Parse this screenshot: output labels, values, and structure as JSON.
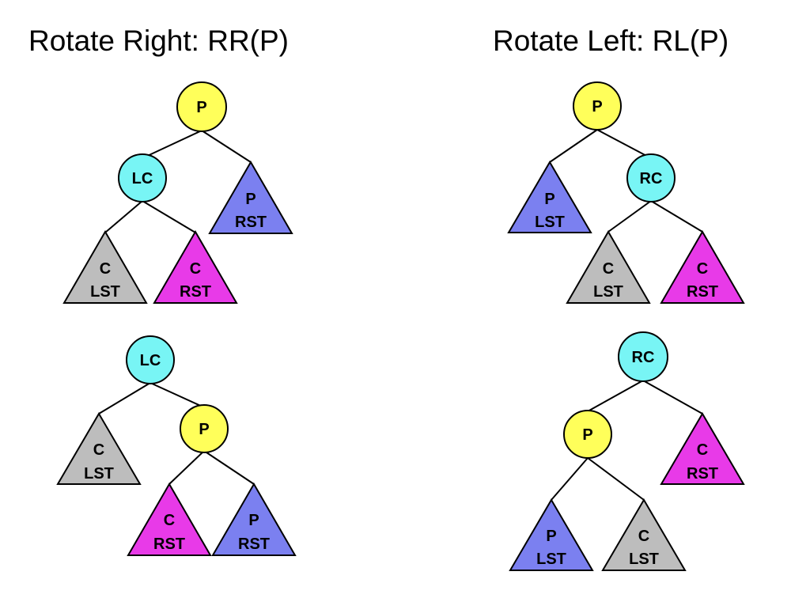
{
  "titles": {
    "rotate_right": "Rotate Right: RR(P)",
    "rotate_left": "Rotate Left: RL(P)"
  },
  "colors": {
    "p_node": "#ffff5a",
    "child_node": "#78f5f5",
    "p_subtree": "#7b80f0",
    "c_lst": "#bdbdbd",
    "c_rst": "#e83ae8",
    "stroke": "#000000"
  },
  "diagrams": {
    "rr_before": {
      "nodes": {
        "p": "P",
        "lc": "LC"
      },
      "subtrees": {
        "c_lst": [
          "C",
          "LST"
        ],
        "c_rst": [
          "C",
          "RST"
        ],
        "p_rst": [
          "P",
          "RST"
        ]
      }
    },
    "rr_after": {
      "nodes": {
        "lc": "LC",
        "p": "P"
      },
      "subtrees": {
        "c_lst": [
          "C",
          "LST"
        ],
        "c_rst": [
          "C",
          "RST"
        ],
        "p_rst": [
          "P",
          "RST"
        ]
      }
    },
    "rl_before": {
      "nodes": {
        "p": "P",
        "rc": "RC"
      },
      "subtrees": {
        "p_lst": [
          "P",
          "LST"
        ],
        "c_lst": [
          "C",
          "LST"
        ],
        "c_rst": [
          "C",
          "RST"
        ]
      }
    },
    "rl_after": {
      "nodes": {
        "rc": "RC",
        "p": "P"
      },
      "subtrees": {
        "p_lst": [
          "P",
          "LST"
        ],
        "c_lst": [
          "C",
          "LST"
        ],
        "c_rst": [
          "C",
          "RST"
        ]
      }
    }
  }
}
